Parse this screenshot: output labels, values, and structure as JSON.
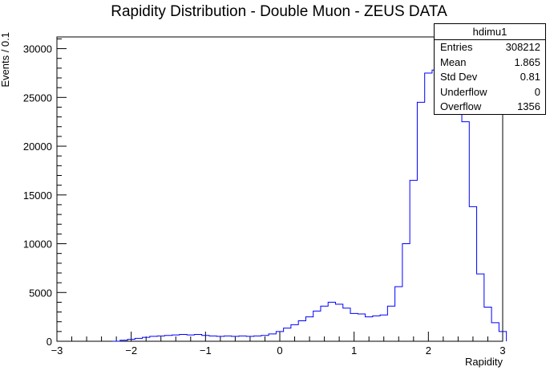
{
  "chart_data": {
    "type": "histogram",
    "title": "Rapidity Distribution - Double Muon - ZEUS DATA",
    "xlabel": "Rapidity",
    "ylabel": "Events / 0.1",
    "xlim": [
      -3,
      3
    ],
    "ylim": [
      0,
      31200
    ],
    "bin_width": 0.1,
    "x_ticks": [
      -3,
      -2,
      -1,
      0,
      1,
      2,
      3
    ],
    "x_tick_labels": [
      "−3",
      "−2",
      "−1",
      "0",
      "1",
      "2",
      "3"
    ],
    "y_ticks": [
      0,
      5000,
      10000,
      15000,
      20000,
      25000,
      30000
    ],
    "y_tick_labels": [
      "0",
      "5000",
      "10000",
      "15000",
      "20000",
      "25000",
      "30000"
    ],
    "line_color": "#0000ff",
    "bins": [
      {
        "x": -2.2,
        "y": 0
      },
      {
        "x": -2.1,
        "y": 100
      },
      {
        "x": -2.0,
        "y": 200
      },
      {
        "x": -1.9,
        "y": 300
      },
      {
        "x": -1.8,
        "y": 400
      },
      {
        "x": -1.7,
        "y": 500
      },
      {
        "x": -1.6,
        "y": 550
      },
      {
        "x": -1.5,
        "y": 600
      },
      {
        "x": -1.4,
        "y": 650
      },
      {
        "x": -1.3,
        "y": 700
      },
      {
        "x": -1.2,
        "y": 650
      },
      {
        "x": -1.1,
        "y": 700
      },
      {
        "x": -1.0,
        "y": 600
      },
      {
        "x": -0.9,
        "y": 550
      },
      {
        "x": -0.8,
        "y": 500
      },
      {
        "x": -0.7,
        "y": 550
      },
      {
        "x": -0.6,
        "y": 500
      },
      {
        "x": -0.5,
        "y": 550
      },
      {
        "x": -0.4,
        "y": 500
      },
      {
        "x": -0.3,
        "y": 550
      },
      {
        "x": -0.2,
        "y": 600
      },
      {
        "x": -0.1,
        "y": 750
      },
      {
        "x": 0.0,
        "y": 1000
      },
      {
        "x": 0.1,
        "y": 1350
      },
      {
        "x": 0.2,
        "y": 1700
      },
      {
        "x": 0.3,
        "y": 2100
      },
      {
        "x": 0.4,
        "y": 2500
      },
      {
        "x": 0.5,
        "y": 3100
      },
      {
        "x": 0.6,
        "y": 3600
      },
      {
        "x": 0.7,
        "y": 4000
      },
      {
        "x": 0.8,
        "y": 3800
      },
      {
        "x": 0.9,
        "y": 3400
      },
      {
        "x": 1.0,
        "y": 2850
      },
      {
        "x": 1.1,
        "y": 2800
      },
      {
        "x": 1.2,
        "y": 2500
      },
      {
        "x": 1.3,
        "y": 2600
      },
      {
        "x": 1.4,
        "y": 2700
      },
      {
        "x": 1.5,
        "y": 3600
      },
      {
        "x": 1.6,
        "y": 5600
      },
      {
        "x": 1.7,
        "y": 10000
      },
      {
        "x": 1.8,
        "y": 16500
      },
      {
        "x": 1.9,
        "y": 24500
      },
      {
        "x": 2.0,
        "y": 27500
      },
      {
        "x": 2.1,
        "y": 27800
      },
      {
        "x": 2.2,
        "y": 27600
      },
      {
        "x": 2.3,
        "y": 27000
      },
      {
        "x": 2.4,
        "y": 25000
      },
      {
        "x": 2.5,
        "y": 22500
      },
      {
        "x": 2.6,
        "y": 13800
      },
      {
        "x": 2.7,
        "y": 6900
      },
      {
        "x": 2.8,
        "y": 3500
      },
      {
        "x": 2.9,
        "y": 1900
      },
      {
        "x": 3.0,
        "y": 1000
      }
    ]
  },
  "stats": {
    "name": "hdimu1",
    "entries_label": "Entries",
    "entries": "308212",
    "mean_label": "Mean",
    "mean": "1.865",
    "stddev_label": "Std Dev",
    "stddev": "0.81",
    "underflow_label": "Underflow",
    "underflow": "0",
    "overflow_label": "Overflow",
    "overflow": "1356"
  }
}
